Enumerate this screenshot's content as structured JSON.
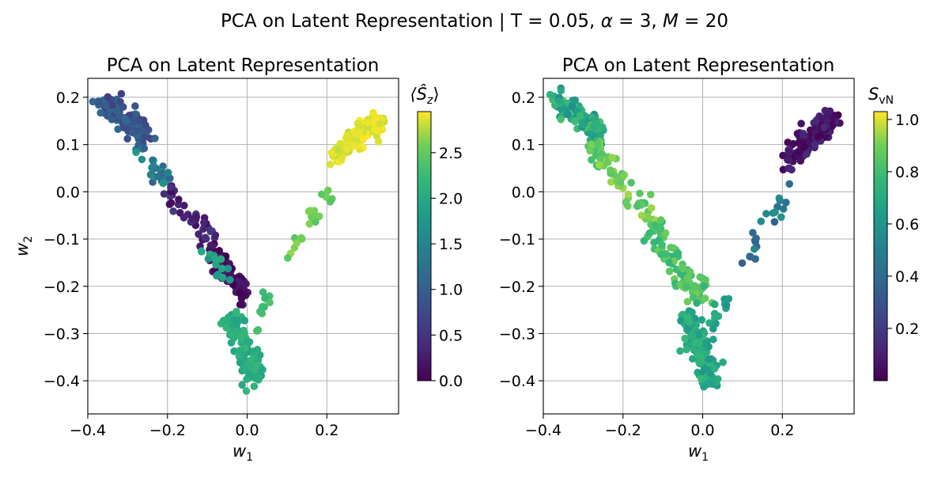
{
  "figure": {
    "suptitle_parts": [
      "PCA on Latent Representation | T = 0.05, ",
      "α",
      " = 3, ",
      "M",
      " = 20"
    ]
  },
  "chart_data": [
    {
      "type": "scatter",
      "title": "PCA on Latent Representation",
      "xlabel_base": "w",
      "xlabel_sub": "1",
      "ylabel_base": "w",
      "ylabel_sub": "2",
      "xlim": [
        -0.4,
        0.38
      ],
      "ylim": [
        -0.47,
        0.24
      ],
      "xticks": [
        -0.4,
        -0.2,
        0.0,
        0.2
      ],
      "xtick_labels": [
        "−0.4",
        "−0.2",
        "0.0",
        "0.2"
      ],
      "yticks": [
        -0.4,
        -0.3,
        -0.2,
        -0.1,
        0.0,
        0.1,
        0.2
      ],
      "ytick_labels": [
        "−0.4",
        "−0.3",
        "−0.2",
        "−0.1",
        "0.0",
        "0.1",
        "0.2"
      ],
      "grid": true,
      "colormap": "viridis",
      "colorbar": {
        "label_base": "⟨Ŝ",
        "label_sub": "z",
        "label_close": "⟩",
        "range": [
          0.0,
          2.95
        ],
        "ticks": [
          0.0,
          0.5,
          1.0,
          1.5,
          2.0,
          2.5
        ],
        "tick_labels": [
          "0.0",
          "0.5",
          "1.0",
          "1.5",
          "2.0",
          "2.5"
        ]
      },
      "clusters": [
        {
          "x": [
            -0.37,
            -0.34,
            -0.31,
            -0.28,
            -0.26
          ],
          "y": [
            0.19,
            0.175,
            0.16,
            0.14,
            0.12
          ],
          "spread": 0.012,
          "count": 140,
          "color_value": [
            0.6,
            1.2
          ]
        },
        {
          "x": [
            -0.28,
            -0.25,
            -0.22,
            -0.2
          ],
          "y": [
            0.1,
            0.07,
            0.04,
            0.02
          ],
          "spread": 0.01,
          "count": 30,
          "color_value": [
            1.0,
            1.8
          ]
        },
        {
          "x": [
            -0.2,
            -0.16,
            -0.12,
            -0.09
          ],
          "y": [
            0.0,
            -0.04,
            -0.07,
            -0.1
          ],
          "spread": 0.01,
          "count": 40,
          "color_value": [
            0.1,
            0.6
          ]
        },
        {
          "x": [
            -0.1,
            -0.07,
            -0.04,
            -0.01
          ],
          "y": [
            -0.12,
            -0.15,
            -0.18,
            -0.22
          ],
          "spread": 0.012,
          "count": 80,
          "color_value": [
            0.0,
            0.3
          ]
        },
        {
          "x": [
            -0.1,
            -0.07,
            -0.04
          ],
          "y": [
            -0.12,
            -0.16,
            -0.19
          ],
          "spread": 0.01,
          "count": 15,
          "color_value": [
            1.7,
            2.1
          ]
        },
        {
          "x": [
            -0.04,
            -0.02,
            0.0,
            0.02
          ],
          "y": [
            -0.27,
            -0.31,
            -0.35,
            -0.4
          ],
          "spread": 0.014,
          "count": 130,
          "color_value": [
            1.9,
            2.2
          ]
        },
        {
          "x": [
            0.02,
            0.04,
            0.06
          ],
          "y": [
            -0.3,
            -0.25,
            -0.21
          ],
          "spread": 0.008,
          "count": 12,
          "color_value": [
            2.2,
            2.4
          ]
        },
        {
          "x": [
            0.09,
            0.12,
            0.15,
            0.18,
            0.21
          ],
          "y": [
            -0.17,
            -0.12,
            -0.07,
            -0.03,
            0.0
          ],
          "spread": 0.009,
          "count": 22,
          "color_value": [
            2.4,
            2.7
          ]
        },
        {
          "x": [
            0.22,
            0.25,
            0.28,
            0.31,
            0.33
          ],
          "y": [
            0.07,
            0.1,
            0.12,
            0.14,
            0.15
          ],
          "spread": 0.012,
          "count": 140,
          "color_value": [
            2.8,
            2.95
          ]
        }
      ]
    },
    {
      "type": "scatter",
      "title": "PCA on Latent Representation",
      "xlabel_base": "w",
      "xlabel_sub": "1",
      "ylabel_base": "",
      "ylabel_sub": "",
      "xlim": [
        -0.4,
        0.38
      ],
      "ylim": [
        -0.47,
        0.24
      ],
      "xticks": [
        -0.4,
        -0.2,
        0.0,
        0.2
      ],
      "xtick_labels": [
        "−0.4",
        "−0.2",
        "0.0",
        "0.2"
      ],
      "yticks": [
        -0.4,
        -0.3,
        -0.2,
        -0.1,
        0.0,
        0.1,
        0.2
      ],
      "ytick_labels": [
        "−0.4",
        "−0.3",
        "−0.2",
        "−0.1",
        "0.0",
        "0.1",
        "0.2"
      ],
      "grid": true,
      "colormap": "viridis",
      "colorbar": {
        "label_base": "S",
        "label_sub": "vN",
        "label_close": "",
        "range": [
          0.0,
          1.03
        ],
        "ticks": [
          0.2,
          0.4,
          0.6,
          0.8,
          1.0
        ],
        "tick_labels": [
          "0.2",
          "0.4",
          "0.6",
          "0.8",
          "1.0"
        ]
      },
      "clusters": [
        {
          "x": [
            -0.37,
            -0.34,
            -0.31,
            -0.28,
            -0.26
          ],
          "y": [
            0.19,
            0.175,
            0.16,
            0.14,
            0.12
          ],
          "spread": 0.012,
          "count": 140,
          "color_value": [
            0.55,
            0.85
          ]
        },
        {
          "x": [
            -0.28,
            -0.24,
            -0.2,
            -0.16,
            -0.12
          ],
          "y": [
            0.1,
            0.06,
            0.02,
            -0.03,
            -0.07
          ],
          "spread": 0.012,
          "count": 60,
          "color_value": [
            0.8,
            0.95
          ]
        },
        {
          "x": [
            -0.12,
            -0.08,
            -0.04,
            0.0
          ],
          "y": [
            -0.08,
            -0.13,
            -0.18,
            -0.22
          ],
          "spread": 0.013,
          "count": 90,
          "color_value": [
            0.75,
            0.9
          ]
        },
        {
          "x": [
            -0.04,
            -0.02,
            0.0,
            0.02
          ],
          "y": [
            -0.27,
            -0.31,
            -0.35,
            -0.4
          ],
          "spread": 0.014,
          "count": 130,
          "color_value": [
            0.62,
            0.78
          ]
        },
        {
          "x": [
            0.02,
            0.04,
            0.06
          ],
          "y": [
            -0.3,
            -0.25,
            -0.21
          ],
          "spread": 0.008,
          "count": 12,
          "color_value": [
            0.6,
            0.72
          ]
        },
        {
          "x": [
            0.1,
            0.13,
            0.16,
            0.19,
            0.21
          ],
          "y": [
            -0.16,
            -0.11,
            -0.06,
            -0.04,
            0.0
          ],
          "spread": 0.009,
          "count": 22,
          "color_value": [
            0.35,
            0.6
          ]
        },
        {
          "x": [
            0.22,
            0.25,
            0.28,
            0.31,
            0.33
          ],
          "y": [
            0.07,
            0.1,
            0.12,
            0.14,
            0.15
          ],
          "spread": 0.012,
          "count": 140,
          "color_value": [
            0.0,
            0.15
          ]
        }
      ]
    }
  ]
}
